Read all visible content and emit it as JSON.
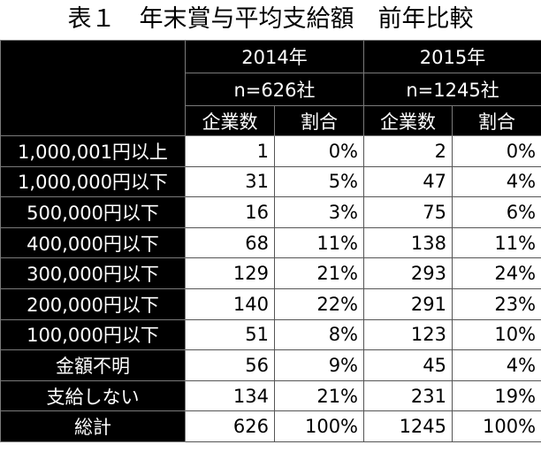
{
  "title": "表１　年末賞与平均支給額　前年比較",
  "headers": {
    "year_2014": "2014年",
    "n_2014": "n=626社",
    "year_2015": "2015年",
    "n_2015": "n=1245社",
    "companies_2014": "企業数",
    "ratio_2014": "割合",
    "companies_2015": "企業数",
    "ratio_2015": "割合"
  },
  "rows": [
    {
      "label": "1,000,001円以上",
      "c2014": "1",
      "r2014": "0%",
      "c2015": "2",
      "r2015": "0%"
    },
    {
      "label": "1,000,000円以下",
      "c2014": "31",
      "r2014": "5%",
      "c2015": "47",
      "r2015": "4%"
    },
    {
      "label": "500,000円以下",
      "c2014": "16",
      "r2014": "3%",
      "c2015": "75",
      "r2015": "6%"
    },
    {
      "label": "400,000円以下",
      "c2014": "68",
      "r2014": "11%",
      "c2015": "138",
      "r2015": "11%"
    },
    {
      "label": "300,000円以下",
      "c2014": "129",
      "r2014": "21%",
      "c2015": "293",
      "r2015": "24%"
    },
    {
      "label": "200,000円以下",
      "c2014": "140",
      "r2014": "22%",
      "c2015": "291",
      "r2015": "23%"
    },
    {
      "label": "100,000円以下",
      "c2014": "51",
      "r2014": "8%",
      "c2015": "123",
      "r2015": "10%"
    },
    {
      "label": "金額不明",
      "c2014": "56",
      "r2014": "9%",
      "c2015": "45",
      "r2015": "4%"
    },
    {
      "label": "支給しない",
      "c2014": "134",
      "r2014": "21%",
      "c2015": "231",
      "r2015": "19%"
    },
    {
      "label": "総計",
      "c2014": "626",
      "r2014": "100%",
      "c2015": "1245",
      "r2015": "100%"
    }
  ]
}
